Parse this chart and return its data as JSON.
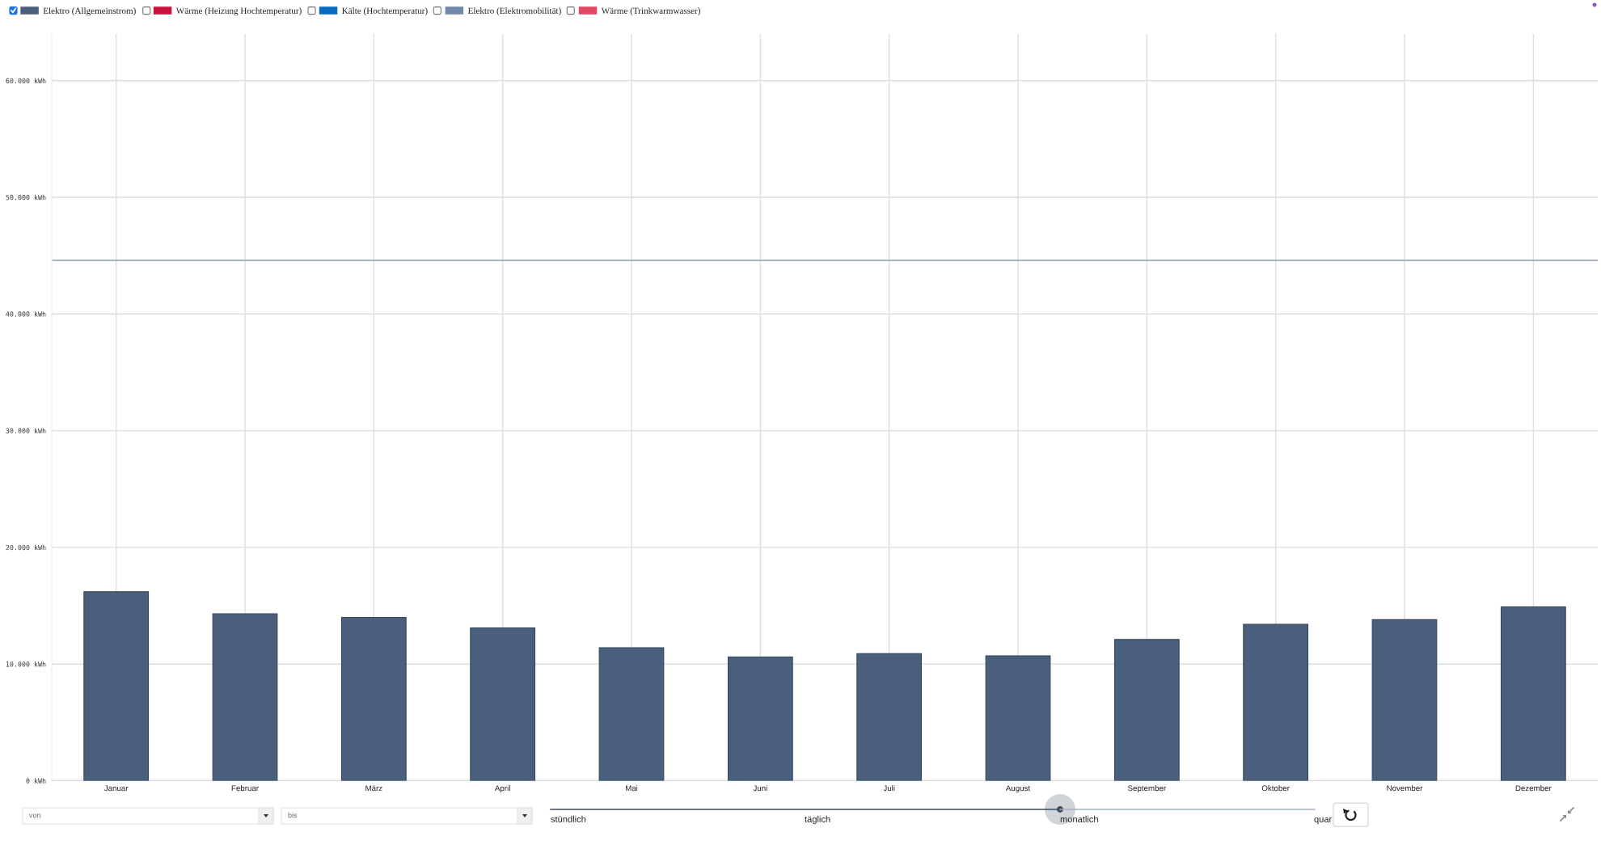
{
  "chart_data": {
    "type": "bar",
    "categories": [
      "Januar",
      "Februar",
      "März",
      "April",
      "Mai",
      "Juni",
      "Juli",
      "August",
      "September",
      "Oktober",
      "November",
      "Dezember"
    ],
    "series": [
      {
        "name": "Elektro (Allgemeinstrom)",
        "color": "#4a5f7b",
        "values": [
          16200,
          14300,
          14000,
          13100,
          11400,
          10600,
          10900,
          10700,
          12100,
          13400,
          13800,
          14900
        ]
      },
      {
        "name": "Wärme (Heizung Hochtemperatur)",
        "color": "#c8143c",
        "values": [
          null,
          null,
          null,
          null,
          null,
          null,
          null,
          null,
          null,
          null,
          null,
          null
        ]
      },
      {
        "name": "Kälte (Hochtemperatur)",
        "color": "#0b6cbf",
        "values": [
          null,
          null,
          null,
          null,
          null,
          null,
          null,
          null,
          null,
          null,
          null,
          null
        ]
      },
      {
        "name": "Elektro (Elektromobilität)",
        "color": "#7088aa",
        "values": [
          null,
          null,
          null,
          null,
          null,
          null,
          null,
          null,
          null,
          null,
          null,
          null
        ]
      },
      {
        "name": "Wärme (Trinkwarmwasser)",
        "color": "#e24a66",
        "values": [
          null,
          null,
          null,
          null,
          null,
          null,
          null,
          null,
          null,
          null,
          null,
          null
        ]
      }
    ],
    "ylim": [
      0,
      64000
    ],
    "yticks": [
      {
        "value": 0,
        "label": "0 kWh"
      },
      {
        "value": 10000,
        "label": "10.000 kWh"
      },
      {
        "value": 20000,
        "label": "20.000 kWh"
      },
      {
        "value": 30000,
        "label": "30.000 kWh"
      },
      {
        "value": 40000,
        "label": "40.000 kWh"
      },
      {
        "value": 50000,
        "label": "50.000 kWh"
      },
      {
        "value": 60000,
        "label": "60.000 kWh"
      }
    ],
    "grid": true,
    "legend": "top left",
    "ref_lines": [
      {
        "axis": "y",
        "value": 44600,
        "color": "#8e9ab3"
      }
    ],
    "annotations": [
      "von",
      "bis",
      "stündlich",
      "täglich",
      "monatlich",
      "quar"
    ]
  }
}
